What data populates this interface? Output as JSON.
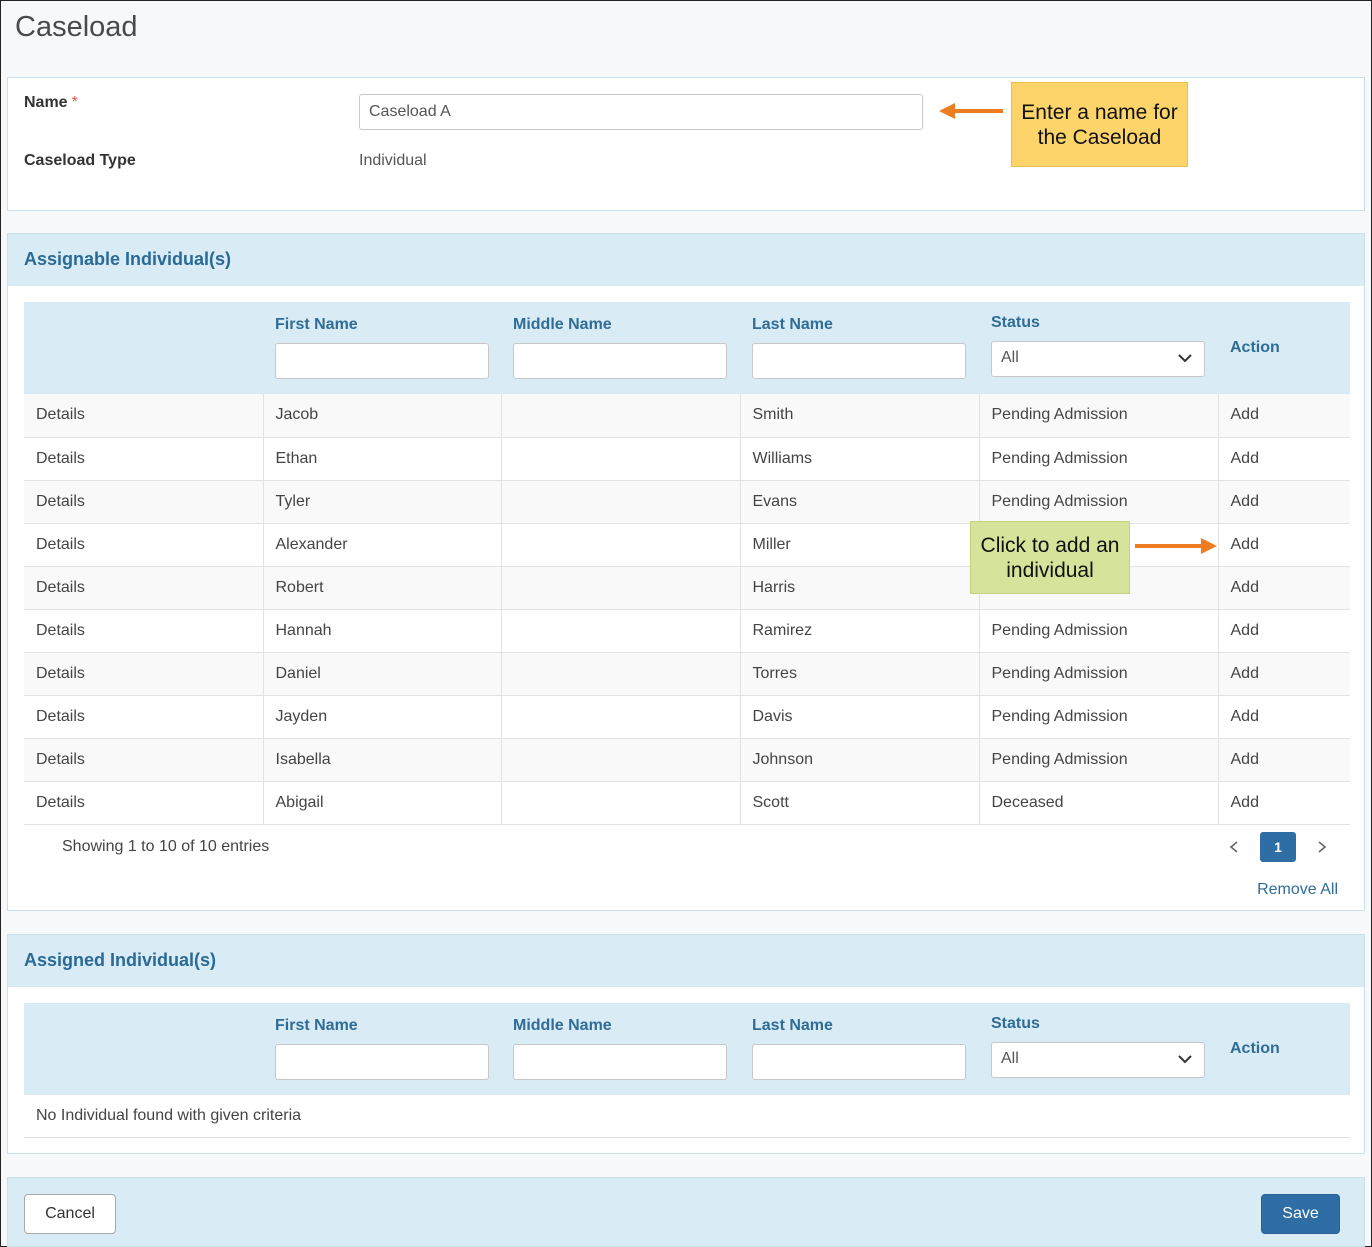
{
  "page": {
    "title": "Caseload"
  },
  "form": {
    "name_label": "Name",
    "required_mark": "*",
    "name_value": "Caseload A",
    "type_label": "Caseload Type",
    "type_value": "Individual"
  },
  "callouts": {
    "name": "Enter a name for the Caseload",
    "add": "Click to add an individual"
  },
  "assignable": {
    "title": "Assignable Individual(s)",
    "columns": {
      "first": "First Name",
      "middle": "Middle Name",
      "last": "Last Name",
      "status": "Status",
      "action": "Action"
    },
    "status_filter": "All",
    "rows": [
      {
        "details": "Details",
        "first": "Jacob",
        "middle": "",
        "last": "Smith",
        "status": "Pending Admission",
        "action": "Add"
      },
      {
        "details": "Details",
        "first": "Ethan",
        "middle": "",
        "last": "Williams",
        "status": "Pending Admission",
        "action": "Add"
      },
      {
        "details": "Details",
        "first": "Tyler",
        "middle": "",
        "last": "Evans",
        "status": "Pending Admission",
        "action": "Add"
      },
      {
        "details": "Details",
        "first": "Alexander",
        "middle": "",
        "last": "Miller",
        "status": "",
        "action": "Add"
      },
      {
        "details": "Details",
        "first": "Robert",
        "middle": "",
        "last": "Harris",
        "status": "",
        "action": "Add"
      },
      {
        "details": "Details",
        "first": "Hannah",
        "middle": "",
        "last": "Ramirez",
        "status": "Pending Admission",
        "action": "Add"
      },
      {
        "details": "Details",
        "first": "Daniel",
        "middle": "",
        "last": "Torres",
        "status": "Pending Admission",
        "action": "Add"
      },
      {
        "details": "Details",
        "first": "Jayden",
        "middle": "",
        "last": "Davis",
        "status": "Pending Admission",
        "action": "Add"
      },
      {
        "details": "Details",
        "first": "Isabella",
        "middle": "",
        "last": "Johnson",
        "status": "Pending Admission",
        "action": "Add"
      },
      {
        "details": "Details",
        "first": "Abigail",
        "middle": "",
        "last": "Scott",
        "status": "Deceased",
        "action": "Add"
      }
    ],
    "showing": "Showing 1 to 10 of 10 entries",
    "page": "1",
    "remove_all": "Remove All"
  },
  "assigned": {
    "title": "Assigned Individual(s)",
    "columns": {
      "first": "First Name",
      "middle": "Middle Name",
      "last": "Last Name",
      "status": "Status",
      "action": "Action"
    },
    "status_filter": "All",
    "empty": "No Individual found with given criteria"
  },
  "footer": {
    "cancel": "Cancel",
    "save": "Save"
  },
  "colors": {
    "accent": "#2f6da5",
    "header_bg": "#d9ebf4",
    "link": "#2f6d96",
    "callout_orange": "#fcd46a",
    "callout_green": "#d6e39a",
    "arrow": "#ee7d22"
  }
}
